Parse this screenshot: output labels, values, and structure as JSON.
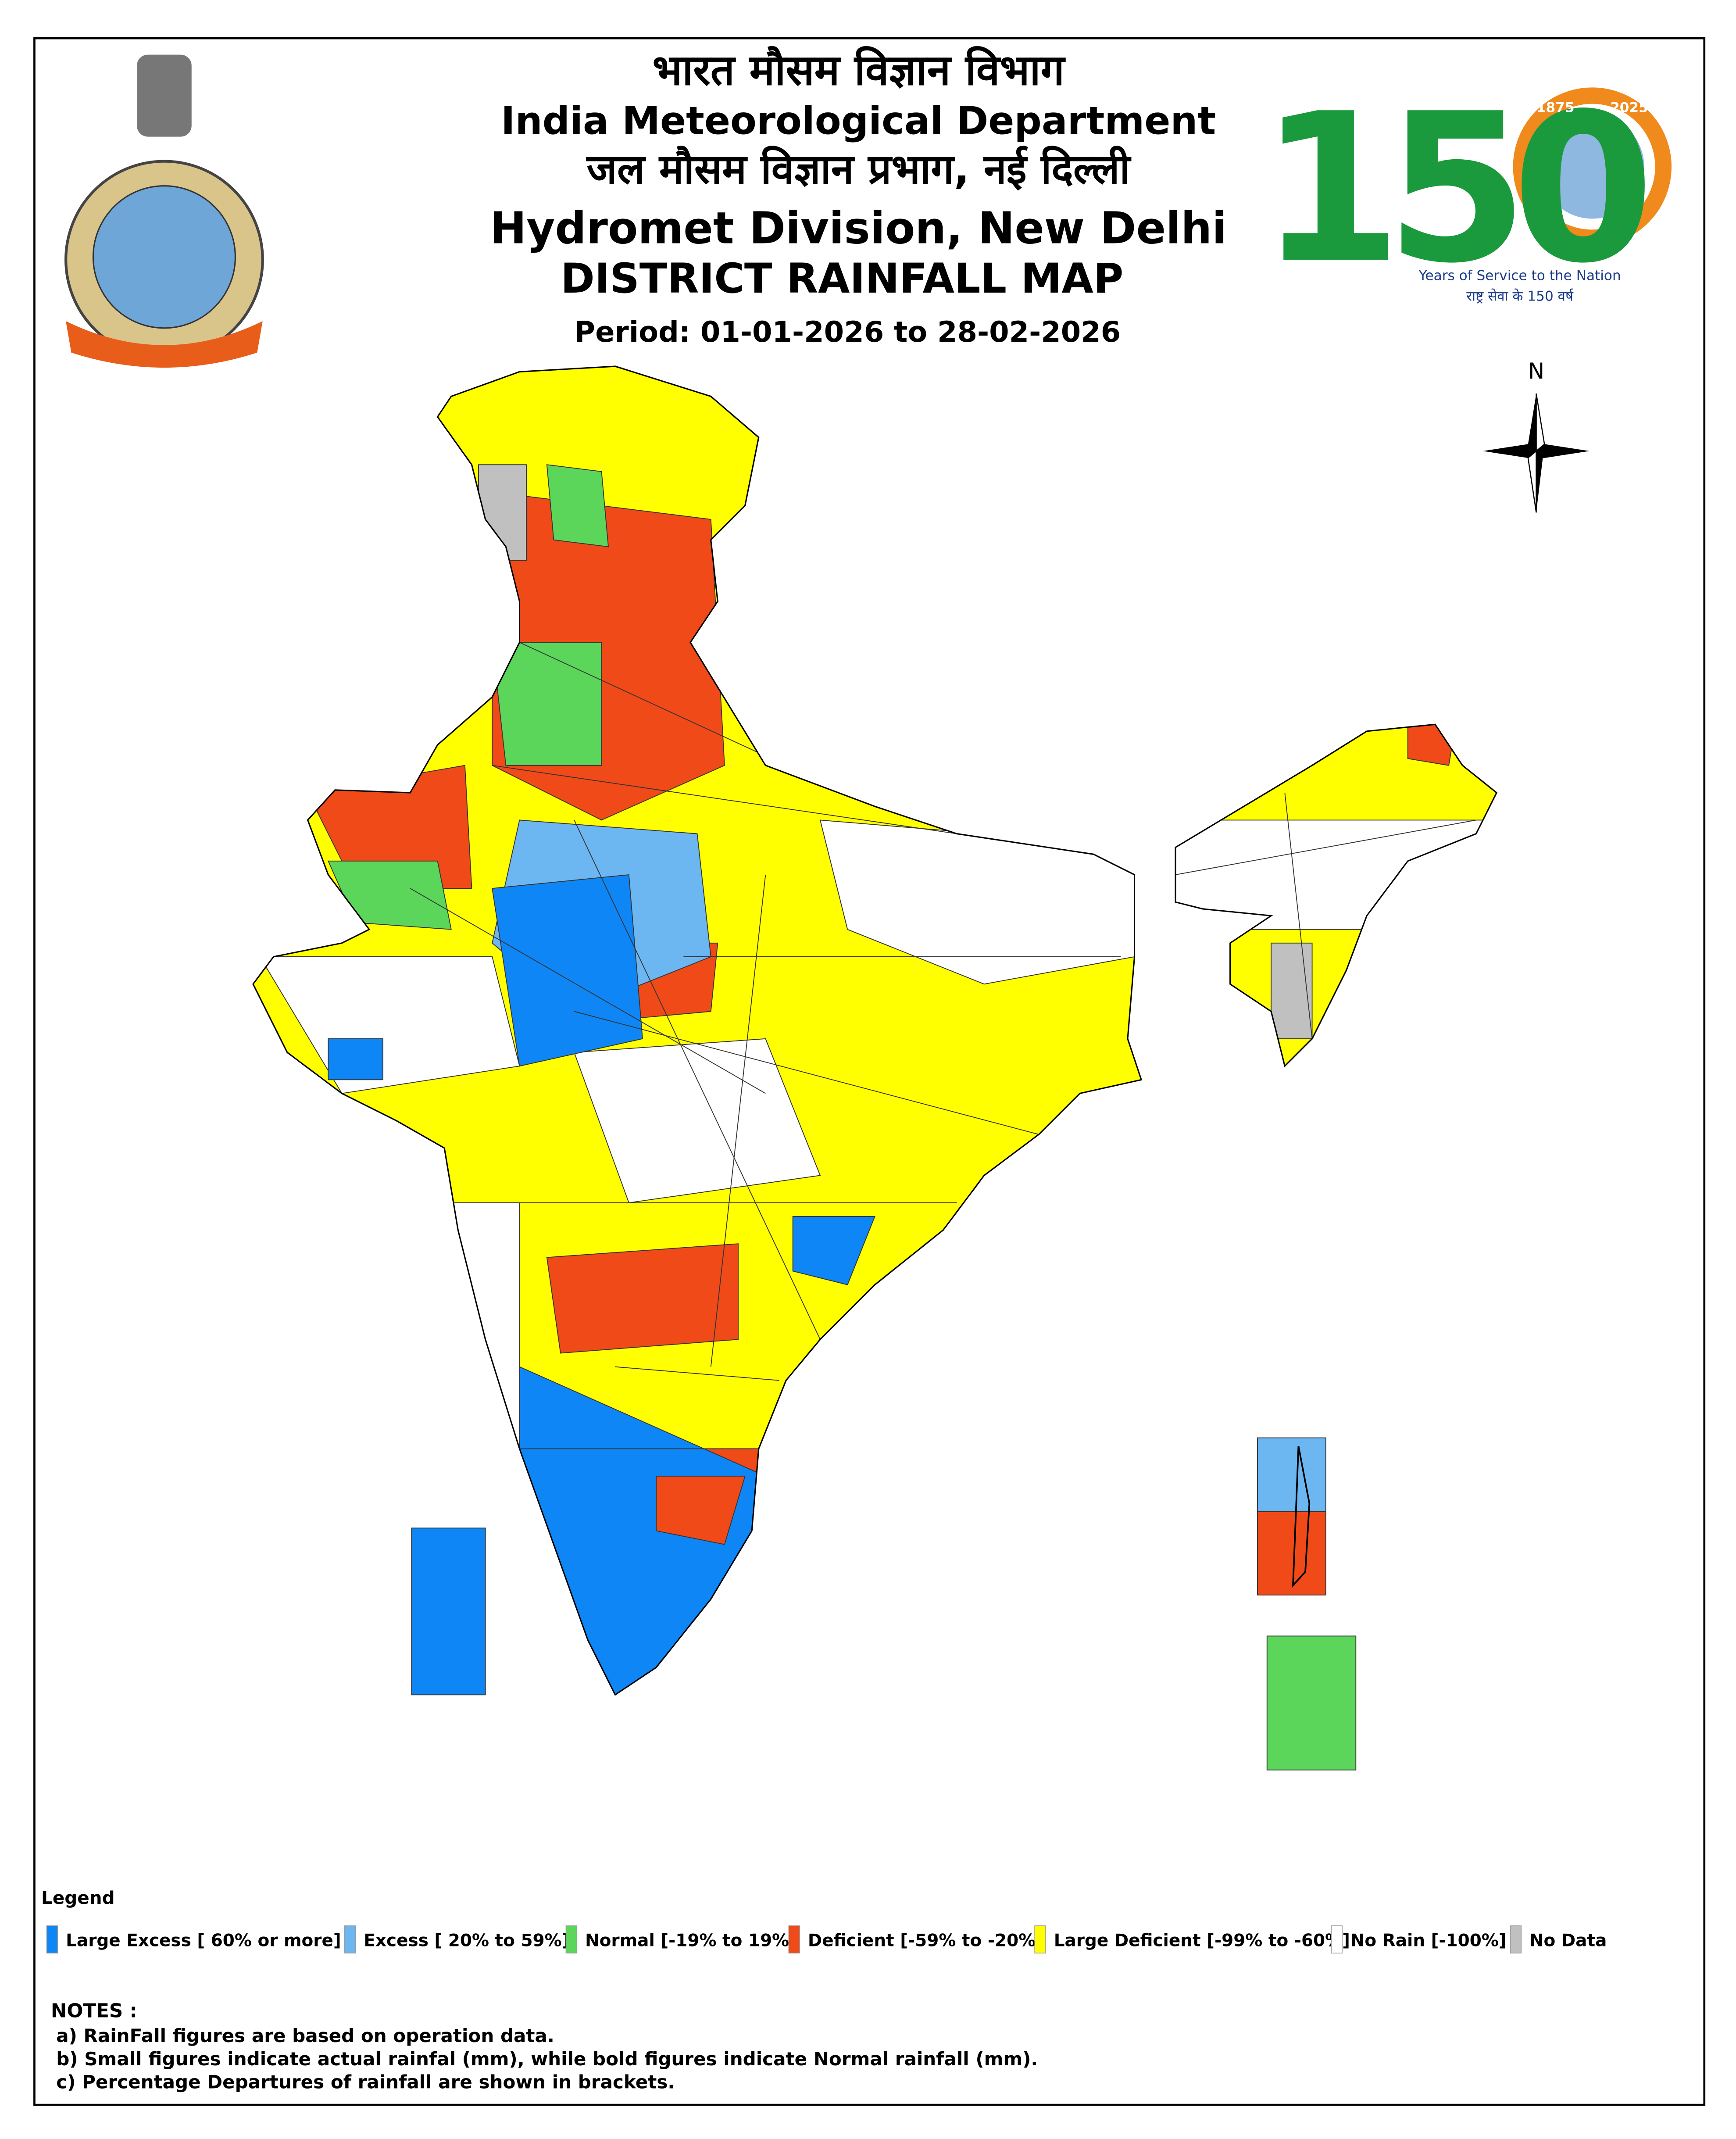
{
  "header": {
    "title_hindi": "भारत  मौसम विज्ञान विभाग",
    "title_english": "India Meteorological Department",
    "division_hindi": "जल  मौसम विज्ञान प्रभाग, नई दिल्ली",
    "division_english": "Hydromet Division, New Delhi",
    "map_title": "DISTRICT RAINFALL MAP",
    "period": "Period: 01-01-2026 to 28-02-2026"
  },
  "anniversary_logo": {
    "number": "150",
    "start_year": "1875",
    "end_year": "2025",
    "tagline": "Years of Service to the Nation",
    "tagline_hindi": "राष्ट्र सेवा के 150 वर्ष"
  },
  "compass": {
    "label": "N"
  },
  "legend": {
    "title": "Legend",
    "items": [
      {
        "label": "Large Excess [ 60% or more]",
        "color": "#0f86f5"
      },
      {
        "label": "Excess [ 20% to 59%]",
        "color": "#6cb6f2"
      },
      {
        "label": "Normal [-19% to 19%]",
        "color": "#5cd65a"
      },
      {
        "label": "Deficient [-59% to -20%]",
        "color": "#f04a18"
      },
      {
        "label": "Large Deficient [-99% to -60%]",
        "color": "#ffff00"
      },
      {
        "label": "No Rain  [-100%]",
        "color": "#ffffff"
      },
      {
        "label": "No Data",
        "color": "#c0c0c0"
      }
    ]
  },
  "notes": {
    "title": "NOTES :",
    "items": [
      "a) RainFall figures are based on operation data.",
      "b) Small figures indicate actual rainfal (mm), while bold figures indicate Normal rainfall (mm).",
      "c) Percentage Departures of rainfall are shown in brackets."
    ]
  }
}
